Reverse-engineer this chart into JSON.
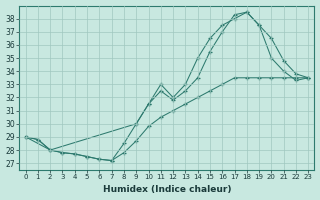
{
  "xlabel": "Humidex (Indice chaleur)",
  "bg_color": "#c8e8e0",
  "grid_color": "#a0c8c0",
  "line_color": "#2d7a6e",
  "xlim": [
    -0.5,
    23.5
  ],
  "ylim": [
    26.5,
    39.0
  ],
  "yticks": [
    27,
    28,
    29,
    30,
    31,
    32,
    33,
    34,
    35,
    36,
    37,
    38
  ],
  "xticks": [
    0,
    1,
    2,
    3,
    4,
    5,
    6,
    7,
    8,
    9,
    10,
    11,
    12,
    13,
    14,
    15,
    16,
    17,
    18,
    19,
    20,
    21,
    22,
    23
  ],
  "line_straight_x": [
    0,
    1,
    2,
    3,
    4,
    5,
    6,
    7,
    8,
    9,
    10,
    11,
    12,
    13,
    14,
    15,
    16,
    17,
    18,
    19,
    20,
    21,
    22,
    23
  ],
  "line_straight_y": [
    29.0,
    28.8,
    28.0,
    27.8,
    27.7,
    27.5,
    27.3,
    27.2,
    27.8,
    28.7,
    29.8,
    30.5,
    31.0,
    31.5,
    32.0,
    32.5,
    33.0,
    33.5,
    33.5,
    33.5,
    33.5,
    33.5,
    33.5,
    33.5
  ],
  "line_upper_x": [
    0,
    1,
    2,
    3,
    4,
    5,
    6,
    7,
    8,
    9,
    10,
    11,
    12,
    13,
    14,
    15,
    16,
    17,
    18,
    19,
    20,
    21,
    22,
    23
  ],
  "line_upper_y": [
    29.0,
    28.8,
    28.0,
    27.8,
    27.7,
    27.5,
    27.3,
    27.2,
    28.5,
    30.0,
    31.5,
    33.0,
    32.0,
    33.0,
    35.0,
    36.5,
    37.5,
    38.0,
    38.5,
    37.5,
    35.0,
    34.0,
    33.3,
    33.5
  ],
  "line_mid_x": [
    0,
    2,
    9,
    10,
    11,
    12,
    13,
    14,
    15,
    16,
    17,
    18,
    19,
    20,
    21,
    22,
    23
  ],
  "line_mid_y": [
    29.0,
    28.0,
    30.0,
    31.5,
    32.5,
    31.8,
    32.5,
    33.5,
    35.5,
    37.0,
    38.3,
    38.5,
    37.5,
    36.5,
    34.8,
    33.8,
    33.5
  ]
}
